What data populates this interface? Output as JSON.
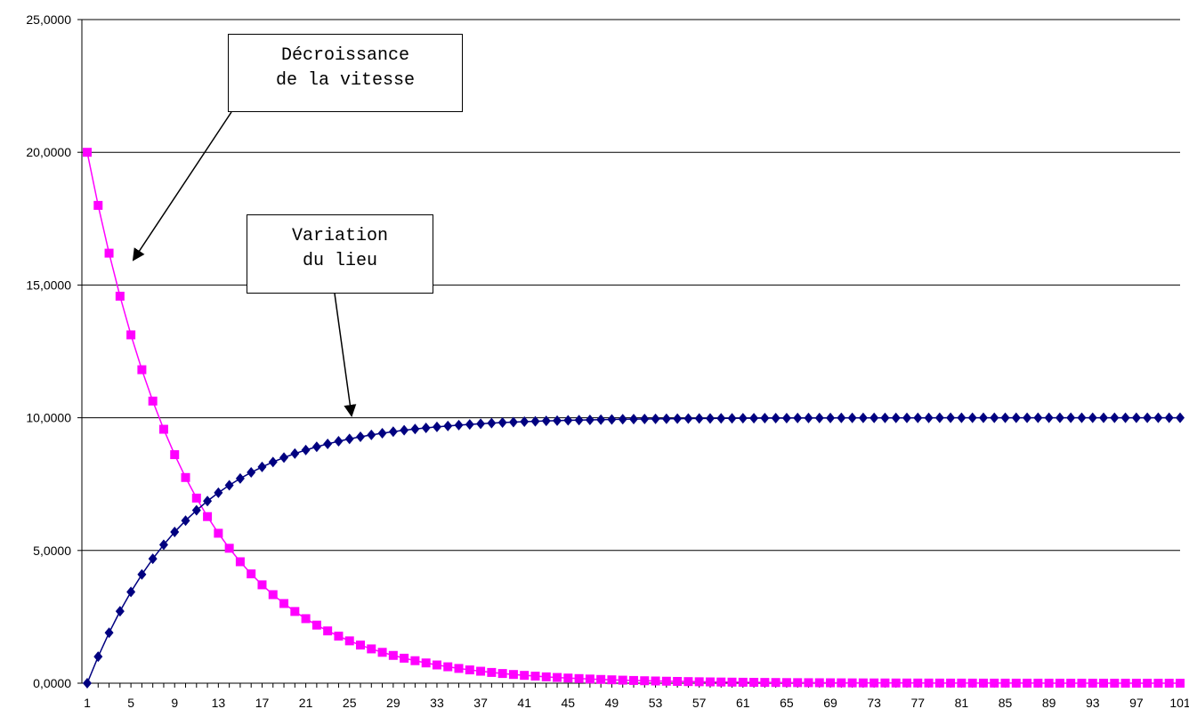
{
  "chart_data": {
    "type": "line",
    "x": [
      1,
      2,
      3,
      4,
      5,
      6,
      7,
      8,
      9,
      10,
      11,
      12,
      13,
      14,
      15,
      16,
      17,
      18,
      19,
      20,
      21,
      22,
      23,
      24,
      25,
      26,
      27,
      28,
      29,
      30,
      31,
      32,
      33,
      34,
      35,
      36,
      37,
      38,
      39,
      40,
      41,
      42,
      43,
      44,
      45,
      46,
      47,
      48,
      49,
      50,
      51,
      52,
      53,
      54,
      55,
      56,
      57,
      58,
      59,
      60,
      61,
      62,
      63,
      64,
      65,
      66,
      67,
      68,
      69,
      70,
      71,
      72,
      73,
      74,
      75,
      76,
      77,
      78,
      79,
      80,
      81,
      82,
      83,
      84,
      85,
      86,
      87,
      88,
      89,
      90,
      91,
      92,
      93,
      94,
      95,
      96,
      97,
      98,
      99,
      100,
      101
    ],
    "xticks": [
      "1",
      "5",
      "9",
      "13",
      "17",
      "21",
      "25",
      "29",
      "33",
      "37",
      "41",
      "45",
      "49",
      "53",
      "57",
      "61",
      "65",
      "69",
      "73",
      "77",
      "81",
      "85",
      "89",
      "93",
      "97",
      "101"
    ],
    "ylim": [
      0,
      25
    ],
    "yticks": [
      "0,0000",
      "5,0000",
      "10,0000",
      "15,0000",
      "20,0000",
      "25,0000"
    ],
    "grid": true,
    "series": [
      {
        "color": "#ff00ff",
        "marker": "square",
        "values": [
          20.0,
          18.0,
          16.2,
          14.58,
          13.122,
          11.8098,
          10.6288,
          9.5659,
          8.6093,
          7.7484,
          6.9736,
          6.2762,
          5.6486,
          5.0837,
          4.5754,
          4.1178,
          3.706,
          3.3354,
          3.0019,
          2.7017,
          2.4315,
          2.1884,
          1.9695,
          1.7726,
          1.5953,
          1.4358,
          1.2922,
          1.163,
          1.0467,
          0.942,
          0.8478,
          0.763,
          0.6867,
          0.6181,
          0.5563,
          0.5006,
          0.4506,
          0.4055,
          0.365,
          0.3285,
          0.2956,
          0.2661,
          0.2394,
          0.2155,
          0.194,
          0.1746,
          0.1571,
          0.1414,
          0.1273,
          0.1145,
          0.1031,
          0.0928,
          0.0835,
          0.0751,
          0.0676,
          0.0609,
          0.0548,
          0.0493,
          0.0444,
          0.04,
          0.036,
          0.0324,
          0.0291,
          0.0262,
          0.0236,
          0.0212,
          0.0191,
          0.0172,
          0.0155,
          0.0139,
          0.0125,
          0.0113,
          0.0101,
          0.0091,
          0.0082,
          0.0074,
          0.0067,
          0.006,
          0.0054,
          0.0049,
          0.0044,
          0.0039,
          0.0035,
          0.0032,
          0.0029,
          0.0026,
          0.0023,
          0.0021,
          0.0019,
          0.0017,
          0.0015,
          0.0014,
          0.0012,
          0.0011,
          0.001,
          0.0009,
          0.0008,
          0.0007,
          0.0006,
          0.0006,
          0.0005
        ]
      },
      {
        "color": "#000080",
        "marker": "diamond",
        "values": [
          0.0,
          1.0,
          1.9,
          2.71,
          3.439,
          4.0951,
          4.6856,
          5.217,
          5.6953,
          6.1258,
          6.5132,
          6.8619,
          7.1757,
          7.4581,
          7.7123,
          7.9411,
          8.147,
          8.3323,
          8.4991,
          8.6491,
          8.7842,
          8.9058,
          9.0152,
          9.1137,
          9.2023,
          9.2821,
          9.3539,
          9.4185,
          9.4767,
          9.529,
          9.5761,
          9.6185,
          9.6566,
          9.691,
          9.7219,
          9.7497,
          9.7747,
          9.7972,
          9.8175,
          9.8358,
          9.8522,
          9.867,
          9.8803,
          9.8922,
          9.903,
          9.9127,
          9.9215,
          9.9293,
          9.9364,
          9.9427,
          9.9485,
          9.9536,
          9.9583,
          9.9624,
          9.9662,
          9.9696,
          9.9726,
          9.9754,
          9.9778,
          9.98,
          9.982,
          9.9838,
          9.9855,
          9.9869,
          9.9882,
          9.9894,
          9.9904,
          9.9914,
          9.9922,
          9.993,
          9.9937,
          9.9943,
          9.9949,
          9.9954,
          9.9959,
          9.9963,
          9.9967,
          9.997,
          9.9973,
          9.9976,
          9.9978,
          9.998,
          9.9982,
          9.9984,
          9.9986,
          9.9987,
          9.9988,
          9.999,
          9.9991,
          9.9991,
          9.9992,
          9.9993,
          9.9994,
          9.9994,
          9.9995,
          9.9995,
          9.9996,
          9.9996,
          9.9996,
          9.9997,
          9.9997
        ]
      }
    ],
    "annotations": [
      {
        "lines": [
          "Décroissance",
          "de la vitesse"
        ]
      },
      {
        "lines": [
          "Variation",
          "du lieu"
        ]
      }
    ]
  }
}
